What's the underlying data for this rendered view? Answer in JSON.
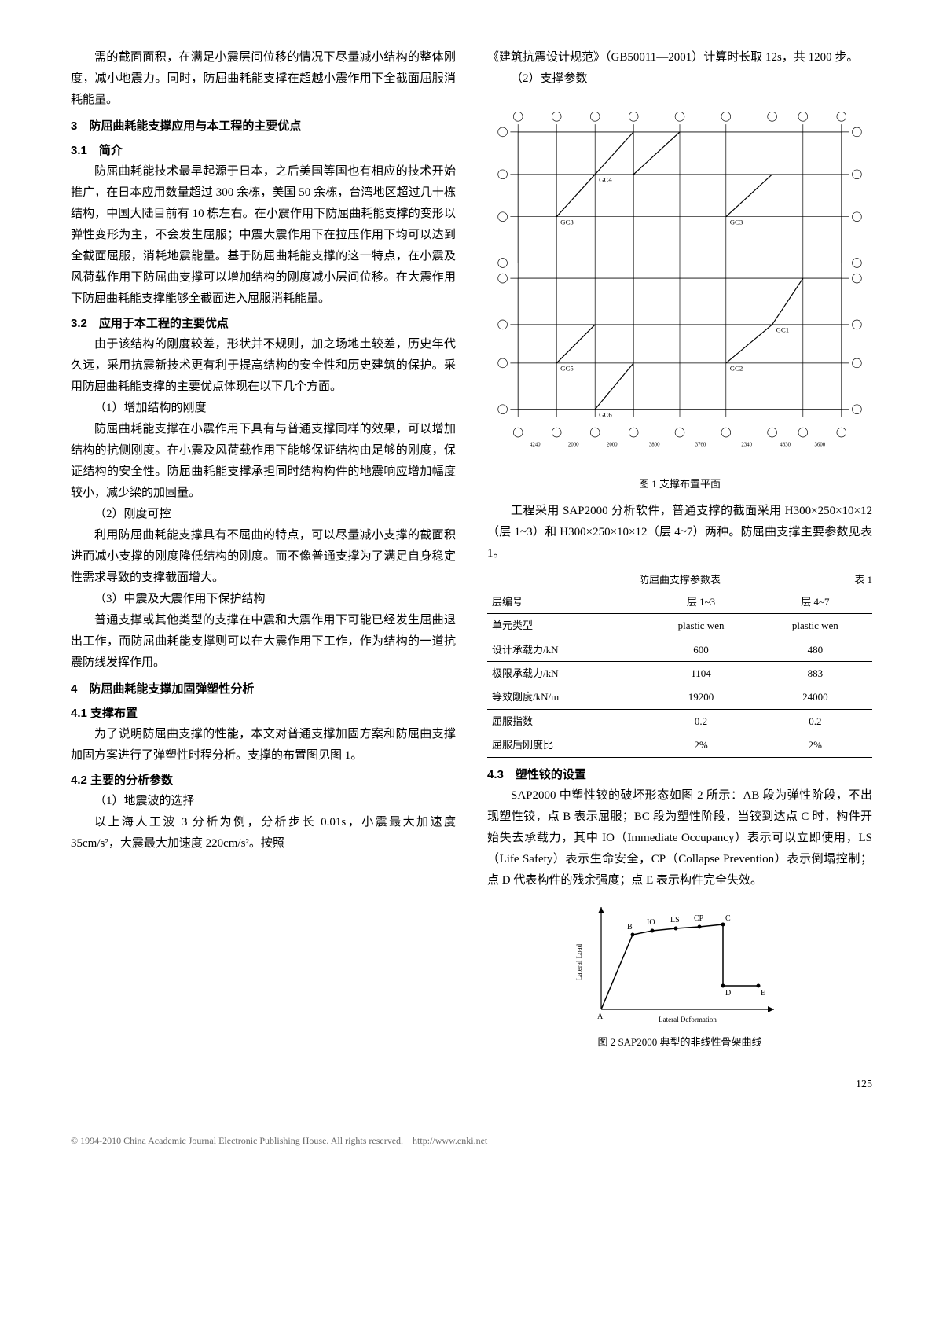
{
  "left_column": {
    "intro_continuation": "需的截面面积，在满足小震层间位移的情况下尽量减小结构的整体刚度，减小地震力。同时，防屈曲耗能支撑在超越小震作用下全截面屈服消耗能量。",
    "s3_head": "3　防屈曲耗能支撑应用与本工程的主要优点",
    "s31_head": "3.1　简介",
    "s31_p1": "防屈曲耗能技术最早起源于日本，之后美国等国也有相应的技术开始推广，在日本应用数量超过 300 余栋，美国 50 余栋，台湾地区超过几十栋结构，中国大陆目前有 10 栋左右。在小震作用下防屈曲耗能支撑的变形以弹性变形为主，不会发生屈服；中震大震作用下在拉压作用下均可以达到全截面屈服，消耗地震能量。基于防屈曲耗能支撑的这一特点，在小震及风荷载作用下防屈曲支撑可以增加结构的刚度减小层间位移。在大震作用下防屈曲耗能支撑能够全截面进入屈服消耗能量。",
    "s32_head": "3.2　应用于本工程的主要优点",
    "s32_p1": "由于该结构的刚度较差，形状并不规则，加之场地土较差，历史年代久远，采用抗震新技术更有利于提高结构的安全性和历史建筑的保护。采用防屈曲耗能支撑的主要优点体现在以下几个方面。",
    "s32_i1_head": "（1）增加结构的刚度",
    "s32_i1_p": "防屈曲耗能支撑在小震作用下具有与普通支撑同样的效果，可以增加结构的抗侧刚度。在小震及风荷载作用下能够保证结构由足够的刚度，保证结构的安全性。防屈曲耗能支撑承担同时结构构件的地震响应增加幅度较小，减少梁的加固量。",
    "s32_i2_head": "（2）刚度可控",
    "s32_i2_p": "利用防屈曲耗能支撑具有不屈曲的特点，可以尽量减小支撑的截面积进而减小支撑的刚度降低结构的刚度。而不像普通支撑为了满足自身稳定性需求导致的支撑截面增大。",
    "s32_i3_head": "（3）中震及大震作用下保护结构",
    "s32_i3_p": "普通支撑或其他类型的支撑在中震和大震作用下可能已经发生屈曲退出工作，而防屈曲耗能支撑则可以在大震作用下工作，作为结构的一道抗震防线发挥作用。",
    "s4_head": "4　防屈曲耗能支撑加固弹塑性分析",
    "s41_head": "4.1 支撑布置",
    "s41_p": "为了说明防屈曲支撑的性能，本文对普通支撑加固方案和防屈曲支撑加固方案进行了弹塑性时程分析。支撑的布置图见图 1。",
    "s42_head": "4.2 主要的分析参数",
    "s42_i1_head": "（1）地震波的选择",
    "s42_i1_p": "以上海人工波 3 分析为例，分析步长 0.01s，小震最大加速度 35cm/s²，大震最大加速度 220cm/s²。按照"
  },
  "right_column": {
    "continuation": "《建筑抗震设计规范》（GB50011—2001）计算时长取 12s，共 1200 步。",
    "s42_i2_head": "（2）支撑参数",
    "fig1_caption": "图 1 支撑布置平面",
    "para_after_fig1": "工程采用 SAP2000 分析软件，普通支撑的截面采用 H300×250×10×12（层 1~3）和 H300×250×10×12（层 4~7）两种。防屈曲支撑主要参数见表 1。",
    "table1_title": "防屈曲支撑参数表",
    "table1_label": "表 1",
    "table1": {
      "headers": [
        "层编号",
        "层 1~3",
        "层 4~7"
      ],
      "rows": [
        [
          "单元类型",
          "plastic wen",
          "plastic wen"
        ],
        [
          "设计承载力/kN",
          "600",
          "480"
        ],
        [
          "极限承载力/kN",
          "1104",
          "883"
        ],
        [
          "等效刚度/kN/m",
          "19200",
          "24000"
        ],
        [
          "屈服指数",
          "0.2",
          "0.2"
        ],
        [
          "屈服后刚度比",
          "2%",
          "2%"
        ]
      ]
    },
    "s43_head": "4.3　塑性铰的设置",
    "s43_p": "SAP2000 中塑性铰的破坏形态如图 2 所示：AB 段为弹性阶段，不出现塑性铰，点 B 表示屈服；BC 段为塑性阶段，当铰到达点 C 时，构件开始失去承载力，其中 IO（Immediate Occupancy）表示可以立即使用，LS（Life Safety）表示生命安全，CP（Collapse Prevention）表示倒塌控制；点 D 代表构件的残余强度；点 E 表示构件完全失效。",
    "fig2_caption": "图 2 SAP2000 典型的非线性骨架曲线",
    "hinge_chart": {
      "xlabel": "Lateral Deformation",
      "ylabel": "Lateral Load",
      "points": [
        "A",
        "B",
        "IO",
        "LS",
        "CP",
        "C",
        "D",
        "E"
      ]
    }
  },
  "page_num": "125",
  "footer": "© 1994-2010 China Academic Journal Electronic Publishing House. All rights reserved.　http://www.cnki.net"
}
